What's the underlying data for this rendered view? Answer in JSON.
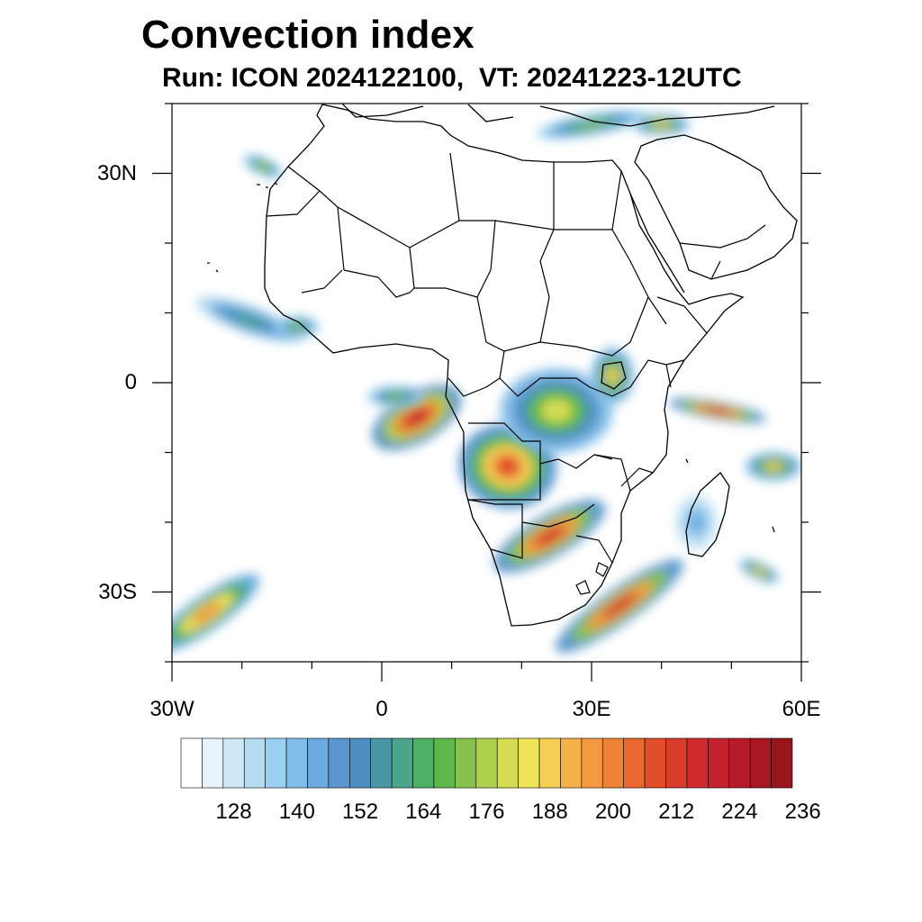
{
  "title": "Convection index",
  "subtitle": "Run: ICON 2024122100,  VT: 20241223-12UTC",
  "map": {
    "lon_range": [
      -30,
      60
    ],
    "lat_range": [
      -40,
      40
    ],
    "x_ticks": [
      {
        "lon": -30,
        "label": "30W"
      },
      {
        "lon": 0,
        "label": "0"
      },
      {
        "lon": 30,
        "label": "30E"
      },
      {
        "lon": 60,
        "label": "60E"
      }
    ],
    "y_ticks": [
      {
        "lat": 30,
        "label": "30N"
      },
      {
        "lat": 0,
        "label": "0"
      },
      {
        "lat": -30,
        "label": "30S"
      }
    ],
    "region": "Africa"
  },
  "colorbar": {
    "colors": [
      "#ffffff",
      "#e8f4fb",
      "#cfe8f6",
      "#b6dcf2",
      "#9ad0f1",
      "#82bce8",
      "#6aaadf",
      "#5a96cf",
      "#4e8fc0",
      "#4a98a6",
      "#4aa58a",
      "#4caf63",
      "#5cb84a",
      "#86c24a",
      "#aed04c",
      "#d6dc52",
      "#efe458",
      "#f7cc52",
      "#f6b24a",
      "#f39a40",
      "#ee8236",
      "#e8682e",
      "#e24e2a",
      "#da3a2a",
      "#d02a2c",
      "#c42130",
      "#b61a2a",
      "#a81722",
      "#9a141c"
    ],
    "labels": [
      "128",
      "140",
      "152",
      "164",
      "176",
      "188",
      "200",
      "212",
      "224",
      "236"
    ]
  },
  "fields": [
    {
      "lon": 5,
      "lat": -5,
      "rx": 7,
      "ry": 3.5,
      "rot": 30,
      "level": 0.9
    },
    {
      "lon": 18,
      "lat": -12,
      "rx": 6,
      "ry": 7,
      "rot": 80,
      "level": 0.8
    },
    {
      "lon": 24,
      "lat": -22,
      "rx": 9,
      "ry": 3,
      "rot": 30,
      "level": 0.85
    },
    {
      "lon": 34,
      "lat": -32,
      "rx": 11,
      "ry": 2.5,
      "rot": 35,
      "level": 0.85
    },
    {
      "lon": 25,
      "lat": -4,
      "rx": 8,
      "ry": 6,
      "rot": 0,
      "level": 0.55
    },
    {
      "lon": 33,
      "lat": 1,
      "rx": 3,
      "ry": 4,
      "rot": 0,
      "level": 0.6
    },
    {
      "lon": -25,
      "lat": -33,
      "rx": 9,
      "ry": 2.5,
      "rot": 35,
      "level": 0.7
    },
    {
      "lon": 48,
      "lat": -4,
      "rx": 7,
      "ry": 1.3,
      "rot": -10,
      "level": 0.85
    },
    {
      "lon": 56,
      "lat": -12,
      "rx": 4,
      "ry": 2,
      "rot": 0,
      "level": 0.6
    },
    {
      "lon": 54,
      "lat": -27,
      "rx": 3,
      "ry": 1.2,
      "rot": -25,
      "level": 0.6
    },
    {
      "lon": 30,
      "lat": 37,
      "rx": 8,
      "ry": 1.5,
      "rot": 10,
      "level": 0.45
    },
    {
      "lon": 40,
      "lat": 37,
      "rx": 4,
      "ry": 1.5,
      "rot": 0,
      "level": 0.6
    },
    {
      "lon": -19,
      "lat": 9,
      "rx": 8,
      "ry": 2,
      "rot": -20,
      "level": 0.35
    },
    {
      "lon": -12,
      "lat": 8,
      "rx": 3,
      "ry": 1.5,
      "rot": 0,
      "level": 0.45
    },
    {
      "lon": -17,
      "lat": 31,
      "rx": 3,
      "ry": 1.2,
      "rot": -25,
      "level": 0.5
    },
    {
      "lon": 45,
      "lat": -20,
      "rx": 3,
      "ry": 4,
      "rot": 0,
      "level": 0.2
    },
    {
      "lon": 2,
      "lat": -2,
      "rx": 4,
      "ry": 1.5,
      "rot": 0,
      "level": 0.45
    }
  ]
}
